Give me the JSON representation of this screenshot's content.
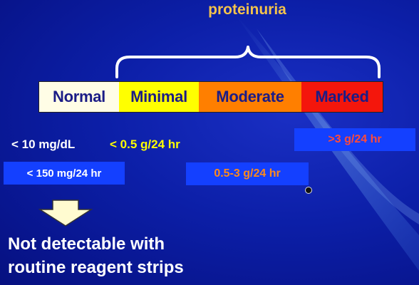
{
  "title": "proteinuria",
  "scale": {
    "normal": "Normal",
    "minimal": "Minimal",
    "moderate": "Moderate",
    "marked": "Marked"
  },
  "values": {
    "normal_concentration": "< 10 mg/dL",
    "normal_daily": "< 150 mg/24 hr",
    "minimal": "< 0.5 g/24 hr",
    "moderate": "0.5-3 g/24 hr",
    "marked": ">3 g/24 hr"
  },
  "note": {
    "line1": "Not detectable with",
    "line2": "routine reagent strips"
  },
  "colors": {
    "background": "#0c1fa8",
    "title": "#f3c24c",
    "normal": "#fffde6",
    "minimal": "#ffff00",
    "moderate": "#ff7f00",
    "marked": "#f4160c",
    "value_box": "#1440ff"
  },
  "icons": {
    "arrow": "down-arrow-icon",
    "brace": "curly-brace-icon",
    "cursor": "mouse-cursor-icon"
  }
}
